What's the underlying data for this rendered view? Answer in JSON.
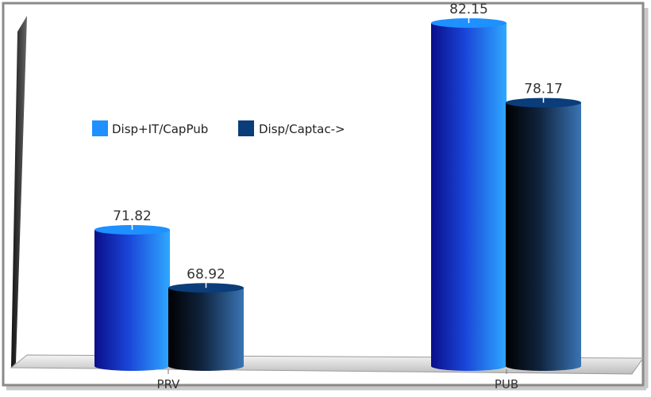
{
  "chart_data": {
    "type": "bar",
    "style": "3d-cylinder",
    "categories": [
      "PRV",
      "PUB"
    ],
    "series": [
      {
        "name": "Disp+IT/CapPub",
        "values": [
          71.82,
          82.15
        ],
        "color": "#1e90ff"
      },
      {
        "name": "Disp/Captac->",
        "values": [
          68.92,
          78.17
        ],
        "color": "#0a3d7a"
      }
    ],
    "data_labels": [
      [
        "71.82",
        "82.15"
      ],
      [
        "68.92",
        "78.17"
      ]
    ],
    "title": "",
    "xlabel": "",
    "ylabel": "",
    "ylim": [
      50,
      90
    ],
    "grid": false,
    "legend_position": "top-left"
  }
}
